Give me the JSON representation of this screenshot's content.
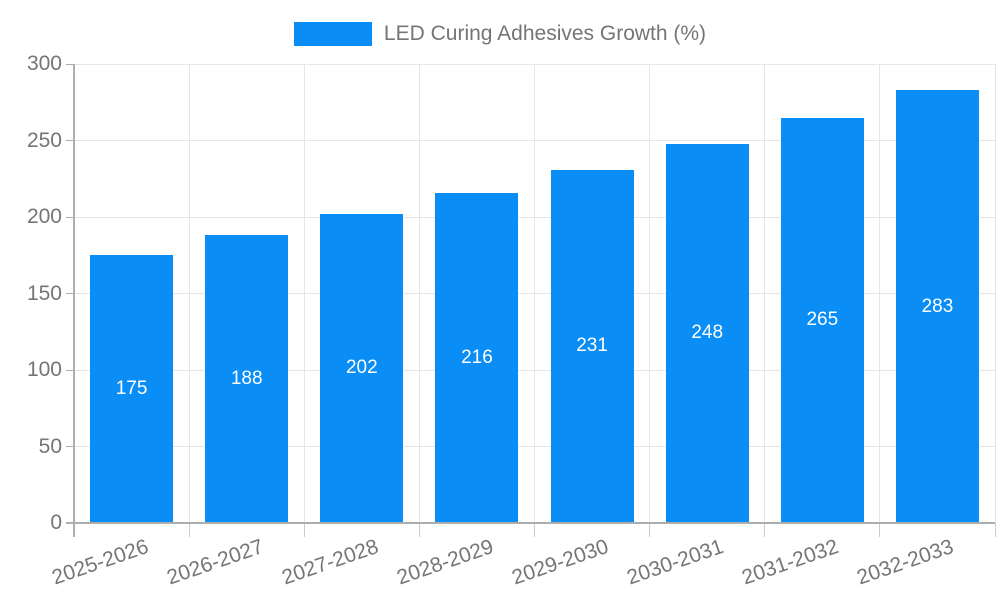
{
  "chart_data": {
    "type": "bar",
    "title": "",
    "legend": [
      "LED Curing Adhesives Growth (%)"
    ],
    "legend_position": "top",
    "categories": [
      "2025-2026",
      "2026-2027",
      "2027-2028",
      "2028-2029",
      "2029-2030",
      "2030-2031",
      "2031-2032",
      "2032-2033"
    ],
    "series": [
      {
        "name": "LED Curing Adhesives Growth (%)",
        "values": [
          175,
          188,
          202,
          216,
          231,
          248,
          265,
          283
        ]
      }
    ],
    "value_labels_shown": true,
    "xlabel": "",
    "ylabel": "",
    "ylim": [
      0,
      300
    ],
    "yticks": [
      0,
      50,
      100,
      150,
      200,
      250,
      300
    ],
    "grid": true,
    "x_tick_rotation_deg": -19,
    "colors": {
      "bar": "#0A8DF5",
      "grid": "#e6e6e6",
      "axis": "#adadad",
      "tick": "#cccccc",
      "tick_text": "#757575",
      "value_label": "#ffffff",
      "background": "#ffffff"
    }
  }
}
